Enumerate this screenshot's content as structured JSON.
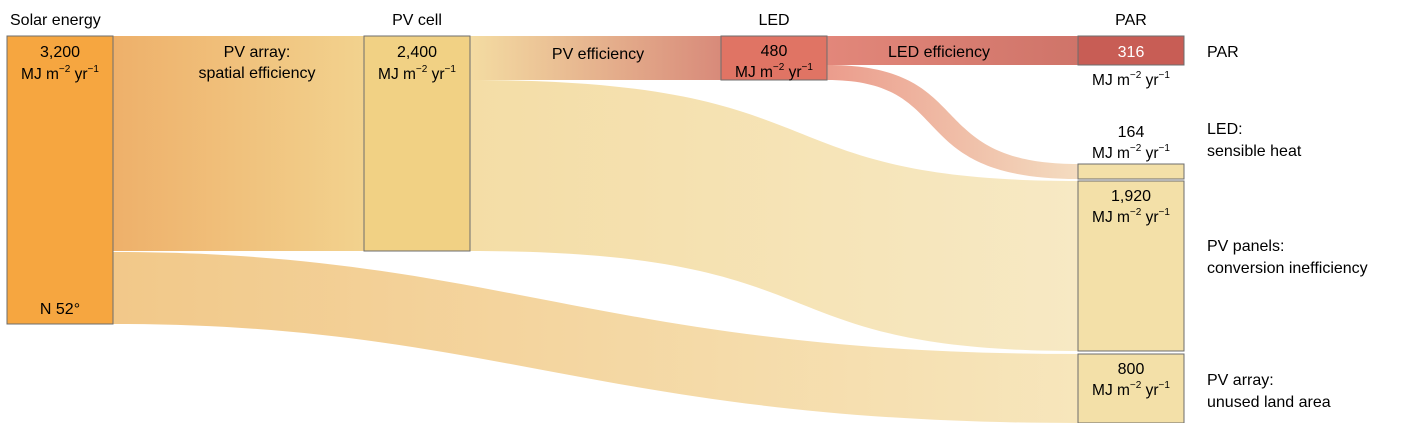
{
  "columns": {
    "solar": "Solar energy",
    "pvcell": "PV cell",
    "led": "LED",
    "par": "PAR"
  },
  "unit": {
    "main": "MJ m",
    "exp1": "−2",
    "mid": " yr",
    "exp2": "−1"
  },
  "nodes": {
    "solar": {
      "value": "3,200",
      "note": "N 52°",
      "color": "#f6a640"
    },
    "pvcell": {
      "value": "2,400",
      "color": "#f1d184"
    },
    "led": {
      "value": "480",
      "color": "#e07464"
    },
    "par": {
      "value": "316",
      "color": "#c85d55"
    },
    "led_heat": {
      "value": "164",
      "color": "#f3e0a8"
    },
    "pv_panels": {
      "value": "1,920",
      "color": "#f3e0a8"
    },
    "unused_land": {
      "value": "800",
      "color": "#f3e0a8"
    }
  },
  "flows": {
    "pv_array": {
      "line1": "PV array:",
      "line2": "spatial efficiency"
    },
    "pv_eff": {
      "label": "PV efficiency"
    },
    "led_eff": {
      "label": "LED efficiency"
    }
  },
  "side_labels": {
    "par": "PAR",
    "led_heat": {
      "line1": "LED:",
      "line2": "sensible heat"
    },
    "pv_panels": {
      "line1": "PV panels:",
      "line2": "conversion inefficiency"
    },
    "unused_land": {
      "line1": "PV array:",
      "line2": "unused land area"
    }
  }
}
